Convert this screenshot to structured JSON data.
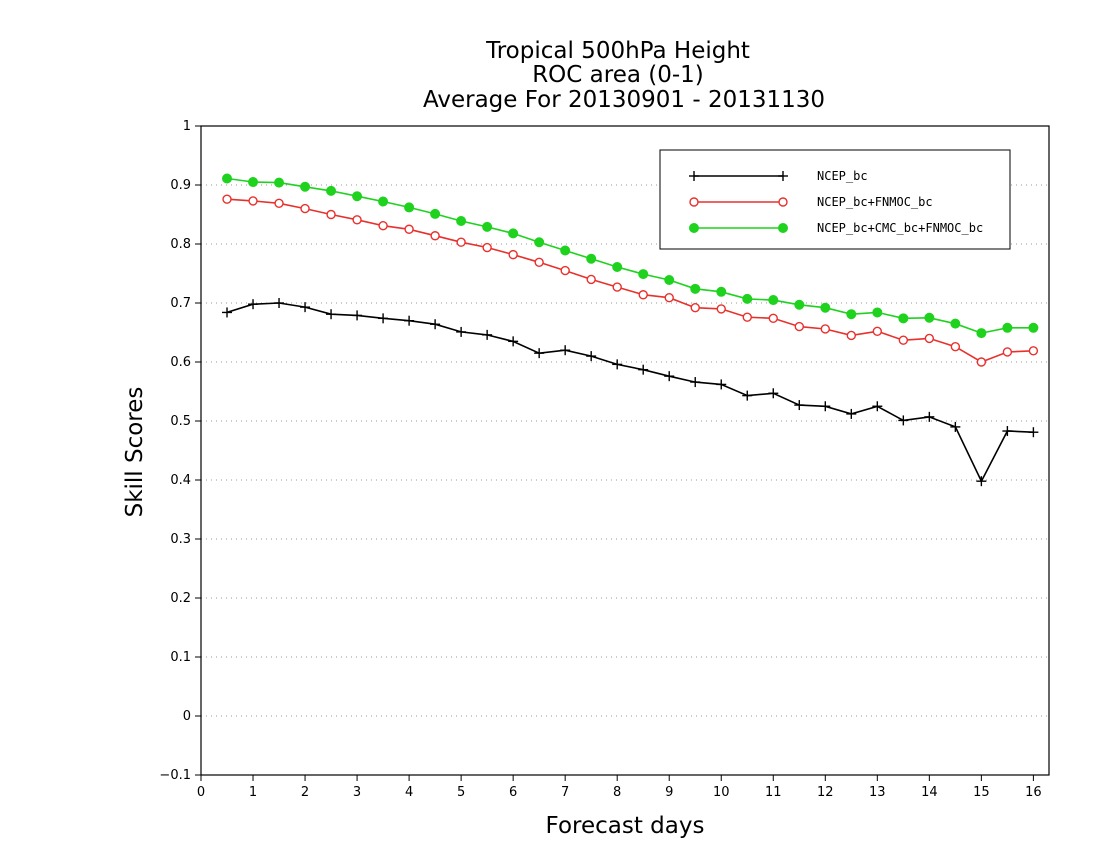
{
  "chart_data": {
    "type": "line",
    "title": [
      "Tropical 500hPa Height",
      "ROC area (0-1)",
      "Average For 20130901 - 20131130"
    ],
    "xlabel": "Forecast days",
    "ylabel": "Skill Scores",
    "xlim": [
      0,
      16.3
    ],
    "ylim": [
      -0.1,
      1
    ],
    "x_ticks": [
      0,
      1,
      2,
      3,
      4,
      5,
      6,
      7,
      8,
      9,
      10,
      11,
      12,
      13,
      14,
      15,
      16
    ],
    "y_ticks": [
      -0.1,
      0,
      0.1,
      0.2,
      0.3,
      0.4,
      0.5,
      0.6,
      0.7,
      0.8,
      0.9,
      1
    ],
    "y_tick_labels": [
      "−0.1",
      "0",
      "0.1",
      "0.2",
      "0.3",
      "0.4",
      "0.5",
      "0.6",
      "0.7",
      "0.8",
      "0.9",
      "1"
    ],
    "grid": "horizontal dotted",
    "legend_position": "top-right",
    "x": [
      0.5,
      1,
      1.5,
      2,
      2.5,
      3,
      3.5,
      4,
      4.5,
      5,
      5.5,
      6,
      6.5,
      7,
      7.5,
      8,
      8.5,
      9,
      9.5,
      10,
      10.5,
      11,
      11.5,
      12,
      12.5,
      13,
      13.5,
      14,
      14.5,
      15,
      15.5,
      16
    ],
    "series": [
      {
        "name": "NCEP_bc",
        "color": "#000000",
        "marker": "plus",
        "values": [
          0.684,
          0.698,
          0.7,
          0.693,
          0.681,
          0.679,
          0.674,
          0.67,
          0.664,
          0.651,
          0.646,
          0.635,
          0.615,
          0.62,
          0.61,
          0.596,
          0.587,
          0.576,
          0.566,
          0.562,
          0.543,
          0.547,
          0.527,
          0.525,
          0.512,
          0.525,
          0.501,
          0.507,
          0.49,
          0.398,
          0.483,
          0.481
        ]
      },
      {
        "name": "NCEP_bc+FNMOC_bc",
        "color": "#e8302c",
        "marker": "open-circle",
        "values": [
          0.876,
          0.873,
          0.869,
          0.86,
          0.85,
          0.841,
          0.831,
          0.825,
          0.814,
          0.803,
          0.794,
          0.782,
          0.769,
          0.755,
          0.74,
          0.727,
          0.714,
          0.709,
          0.692,
          0.69,
          0.676,
          0.674,
          0.66,
          0.656,
          0.645,
          0.652,
          0.637,
          0.64,
          0.626,
          0.6,
          0.617,
          0.619
        ]
      },
      {
        "name": "NCEP_bc+CMC_bc+FNMOC_bc",
        "color": "#1ed21e",
        "marker": "filled-circle",
        "values": [
          0.911,
          0.905,
          0.904,
          0.897,
          0.89,
          0.881,
          0.872,
          0.862,
          0.851,
          0.839,
          0.829,
          0.818,
          0.803,
          0.789,
          0.775,
          0.761,
          0.749,
          0.739,
          0.724,
          0.719,
          0.707,
          0.705,
          0.697,
          0.692,
          0.681,
          0.684,
          0.674,
          0.675,
          0.665,
          0.649,
          0.658,
          0.658
        ]
      }
    ]
  }
}
